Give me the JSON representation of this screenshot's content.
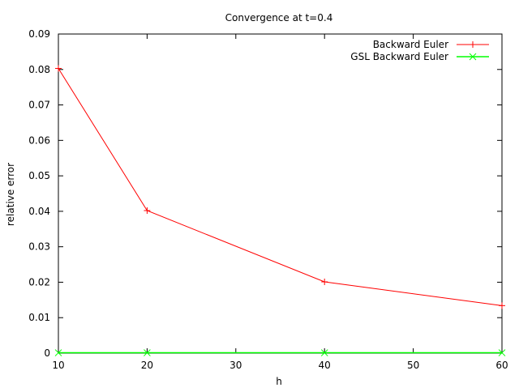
{
  "chart_data": {
    "type": "line",
    "title": "Convergence at t=0.4",
    "xlabel": "h",
    "ylabel": "relative error",
    "xlim": [
      10,
      60
    ],
    "ylim": [
      0,
      0.09
    ],
    "xticks": [
      10,
      20,
      30,
      40,
      50,
      60
    ],
    "yticks": [
      0,
      0.01,
      0.02,
      0.03,
      0.04,
      0.05,
      0.06,
      0.07,
      0.08,
      0.09
    ],
    "grid": false,
    "legend_position": "top-right",
    "series": [
      {
        "name": "Backward Euler",
        "color": "#ff0000",
        "marker": "plus",
        "x": [
          10,
          20,
          40,
          60
        ],
        "y": [
          0.0803,
          0.0402,
          0.0201,
          0.0134
        ]
      },
      {
        "name": "GSL Backward Euler",
        "color": "#00ff00",
        "marker": "cross",
        "x": [
          10,
          20,
          40,
          60
        ],
        "y": [
          0.0001,
          0.0001,
          0.0001,
          0.0001
        ]
      }
    ]
  }
}
